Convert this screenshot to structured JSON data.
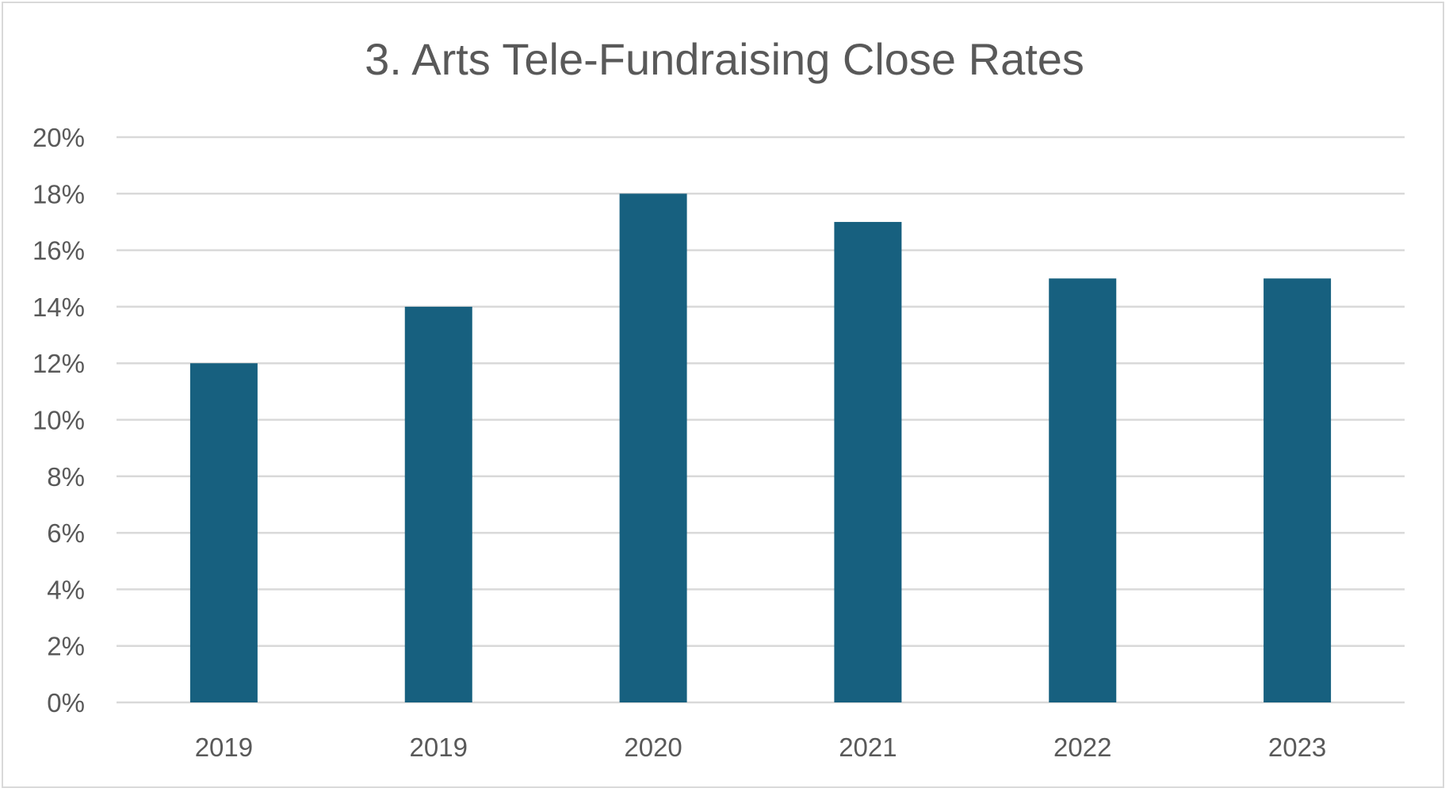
{
  "chart_data": {
    "type": "bar",
    "title": "3. Arts Tele-Fundraising Close Rates",
    "categories": [
      "2019",
      "2019",
      "2020",
      "2021",
      "2022",
      "2023"
    ],
    "values": [
      12,
      14,
      18,
      17,
      15,
      15
    ],
    "value_unit": "%",
    "xlabel": "",
    "ylabel": "",
    "ylim": [
      0,
      20
    ],
    "y_ticks": [
      "0%",
      "2%",
      "4%",
      "6%",
      "8%",
      "10%",
      "12%",
      "14%",
      "16%",
      "18%",
      "20%"
    ],
    "grid": true,
    "legend": "none",
    "bar_color": "#17607f",
    "grid_color": "#d9d9d9",
    "text_color": "#595959"
  }
}
